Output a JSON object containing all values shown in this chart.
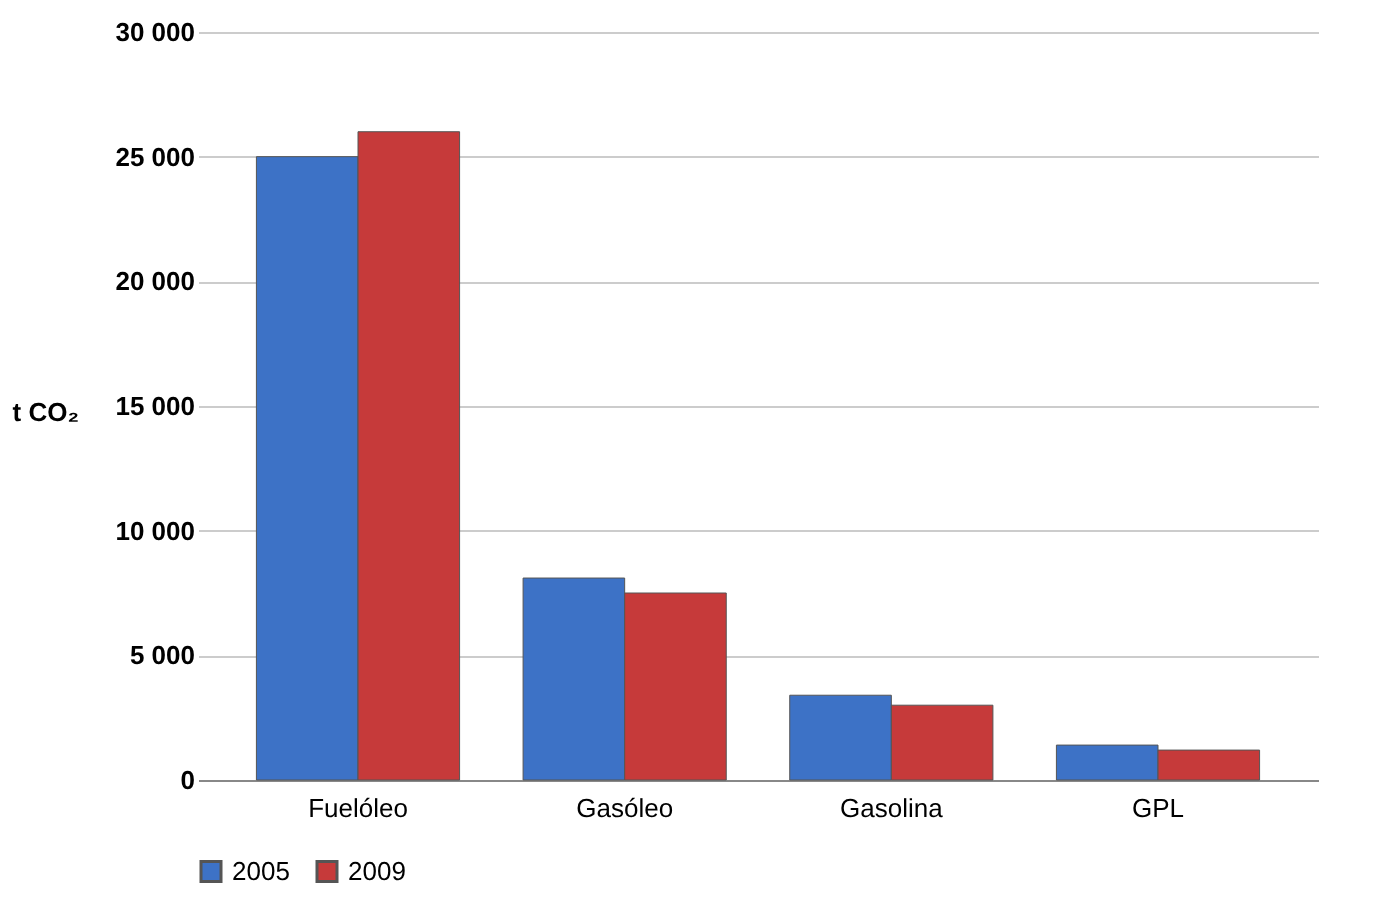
{
  "chart_data": {
    "type": "bar",
    "ylabel": "t CO₂",
    "categories": [
      "Fuelóleo",
      "Gasóleo",
      "Gasolina",
      "GPL"
    ],
    "series": [
      {
        "name": "2005",
        "color": "#3d72c6",
        "values": [
          25000,
          8100,
          3400,
          1400
        ]
      },
      {
        "name": "2009",
        "color": "#c63a3a",
        "values": [
          26000,
          7500,
          3000,
          1200
        ]
      }
    ],
    "ylim": [
      0,
      30000
    ],
    "yticks": [
      {
        "value": 0,
        "label": "0"
      },
      {
        "value": 5000,
        "label": "5 000"
      },
      {
        "value": 10000,
        "label": "10 000"
      },
      {
        "value": 15000,
        "label": "15 000"
      },
      {
        "value": 20000,
        "label": "20 000"
      },
      {
        "value": 25000,
        "label": "25 000"
      },
      {
        "value": 30000,
        "label": "30 000"
      }
    ],
    "grid": "y",
    "legend": "bottom"
  }
}
